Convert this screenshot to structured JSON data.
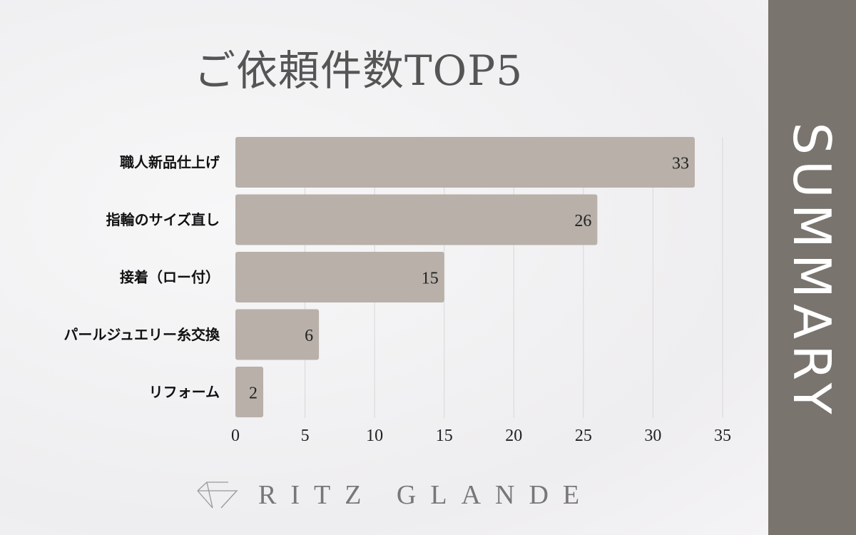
{
  "chart_data": {
    "type": "bar",
    "orientation": "horizontal",
    "title": "ご依頼件数TOP5",
    "categories": [
      "職人新品仕上げ",
      "指輪のサイズ直し",
      "接着（ロー付）",
      "パールジュエリー糸交換",
      "リフォーム"
    ],
    "values": [
      33,
      26,
      15,
      6,
      2
    ],
    "xlim": [
      0,
      35
    ],
    "xticks": [
      "0",
      "5",
      "10",
      "15",
      "20",
      "25",
      "30",
      "35"
    ],
    "grid": "vertical",
    "bar_color": "#b8b0a9",
    "data_labels": true
  },
  "side_panel": {
    "label": "SUMMARY",
    "color": "#7a746e"
  },
  "logo": {
    "text": "RITZ GLANDE"
  }
}
